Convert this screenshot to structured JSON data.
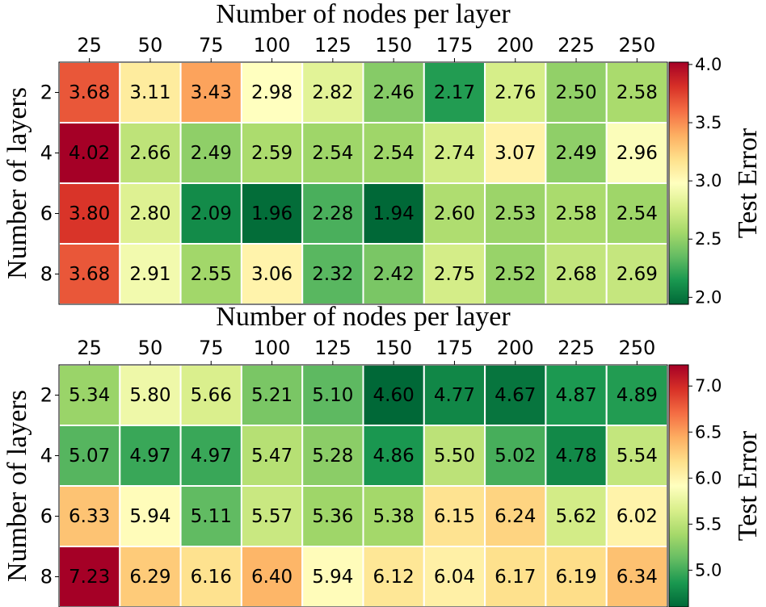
{
  "chart_data": [
    {
      "type": "heatmap",
      "x_label": "Number of nodes per layer",
      "y_label": "Number of layers",
      "colorbar_label": "Test Error",
      "x": [
        25,
        50,
        75,
        100,
        125,
        150,
        175,
        200,
        225,
        250
      ],
      "y": [
        2,
        4,
        6,
        8
      ],
      "values": [
        [
          3.68,
          3.11,
          3.43,
          2.98,
          2.82,
          2.46,
          2.17,
          2.76,
          2.5,
          2.58
        ],
        [
          4.02,
          2.66,
          2.49,
          2.59,
          2.54,
          2.54,
          2.74,
          3.07,
          2.49,
          2.96
        ],
        [
          3.8,
          2.8,
          2.09,
          1.96,
          2.28,
          1.94,
          2.6,
          2.53,
          2.58,
          2.54
        ],
        [
          3.68,
          2.91,
          2.55,
          3.06,
          2.32,
          2.42,
          2.75,
          2.52,
          2.68,
          2.69
        ]
      ],
      "value_labels": [
        [
          "3.68",
          "3.11",
          "3.43",
          "2.98",
          "2.82",
          "2.46",
          "2.17",
          "2.76",
          "2.50",
          "2.58"
        ],
        [
          "4.02",
          "2.66",
          "2.49",
          "2.59",
          "2.54",
          "2.54",
          "2.74",
          "3.07",
          "2.49",
          "2.96"
        ],
        [
          "3.80",
          "2.80",
          "2.09",
          "1.96",
          "2.28",
          "1.94",
          "2.60",
          "2.53",
          "2.58",
          "2.54"
        ],
        [
          "3.68",
          "2.91",
          "2.55",
          "3.06",
          "2.32",
          "2.42",
          "2.75",
          "2.52",
          "2.68",
          "2.69"
        ]
      ],
      "zlim": [
        1.94,
        4.02
      ],
      "zticks": [
        {
          "value": 2,
          "label": "2.0"
        },
        2.5,
        {
          "value": 3,
          "label": "3.0"
        },
        3.5,
        {
          "value": 4,
          "label": "4.0"
        }
      ],
      "colormap": [
        "#006837",
        "#1a9850",
        "#66bd63",
        "#a6d96a",
        "#d9ef8b",
        "#ffffbf",
        "#fee08b",
        "#fdae61",
        "#f46d43",
        "#d73027",
        "#a50026"
      ]
    },
    {
      "type": "heatmap",
      "x_label": "Number of nodes per layer",
      "y_label": "Number of layers",
      "colorbar_label": "Test Error",
      "x": [
        25,
        50,
        75,
        100,
        125,
        150,
        175,
        200,
        225,
        250
      ],
      "y": [
        2,
        4,
        6,
        8
      ],
      "values": [
        [
          5.34,
          5.8,
          5.66,
          5.21,
          5.1,
          4.6,
          4.77,
          4.67,
          4.87,
          4.89
        ],
        [
          5.07,
          4.97,
          4.97,
          5.47,
          5.28,
          4.86,
          5.5,
          5.02,
          4.78,
          5.54
        ],
        [
          6.33,
          5.94,
          5.11,
          5.57,
          5.36,
          5.38,
          6.15,
          6.24,
          5.62,
          6.02
        ],
        [
          7.23,
          6.29,
          6.16,
          6.4,
          5.94,
          6.12,
          6.04,
          6.17,
          6.19,
          6.34
        ]
      ],
      "value_labels": [
        [
          "5.34",
          "5.80",
          "5.66",
          "5.21",
          "5.10",
          "4.60",
          "4.77",
          "4.67",
          "4.87",
          "4.89"
        ],
        [
          "5.07",
          "4.97",
          "4.97",
          "5.47",
          "5.28",
          "4.86",
          "5.50",
          "5.02",
          "4.78",
          "5.54"
        ],
        [
          "6.33",
          "5.94",
          "5.11",
          "5.57",
          "5.36",
          "5.38",
          "6.15",
          "6.24",
          "5.62",
          "6.02"
        ],
        [
          "7.23",
          "6.29",
          "6.16",
          "6.40",
          "5.94",
          "6.12",
          "6.04",
          "6.17",
          "6.19",
          "6.34"
        ]
      ],
      "zlim": [
        4.6,
        7.23
      ],
      "zticks": [
        {
          "value": 5,
          "label": "5.0"
        },
        5.5,
        {
          "value": 6,
          "label": "6.0"
        },
        6.5,
        {
          "value": 7,
          "label": "7.0"
        }
      ],
      "colormap": [
        "#006837",
        "#1a9850",
        "#66bd63",
        "#a6d96a",
        "#d9ef8b",
        "#ffffbf",
        "#fee08b",
        "#fdae61",
        "#f46d43",
        "#d73027",
        "#a50026"
      ]
    }
  ]
}
